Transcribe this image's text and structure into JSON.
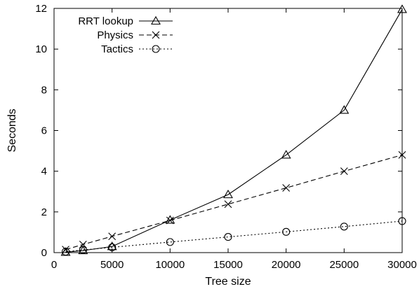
{
  "chart_data": {
    "type": "line",
    "xlabel": "Tree size",
    "ylabel": "Seconds",
    "xlim": [
      0,
      30000
    ],
    "ylim": [
      0,
      12
    ],
    "xticks": [
      0,
      5000,
      10000,
      15000,
      20000,
      25000,
      30000
    ],
    "yticks": [
      0,
      2,
      4,
      6,
      8,
      10,
      12
    ],
    "grid": false,
    "legend_position": "top-left",
    "series": [
      {
        "name": "RRT lookup",
        "marker": "triangle",
        "line": "solid",
        "x": [
          1000,
          2500,
          5000,
          10000,
          15000,
          20000,
          25000,
          30000
        ],
        "y": [
          0.02,
          0.1,
          0.3,
          1.6,
          2.85,
          4.8,
          7.0,
          11.95
        ]
      },
      {
        "name": "Physics",
        "marker": "cross",
        "line": "dashed",
        "x": [
          1000,
          2500,
          5000,
          10000,
          15000,
          20000,
          25000,
          30000
        ],
        "y": [
          0.15,
          0.4,
          0.8,
          1.58,
          2.38,
          3.18,
          4.0,
          4.8
        ]
      },
      {
        "name": "Tactics",
        "marker": "circle",
        "line": "dotted",
        "x": [
          1000,
          2500,
          5000,
          10000,
          15000,
          20000,
          25000,
          30000
        ],
        "y": [
          0.05,
          0.13,
          0.26,
          0.52,
          0.77,
          1.02,
          1.28,
          1.55
        ]
      }
    ]
  }
}
